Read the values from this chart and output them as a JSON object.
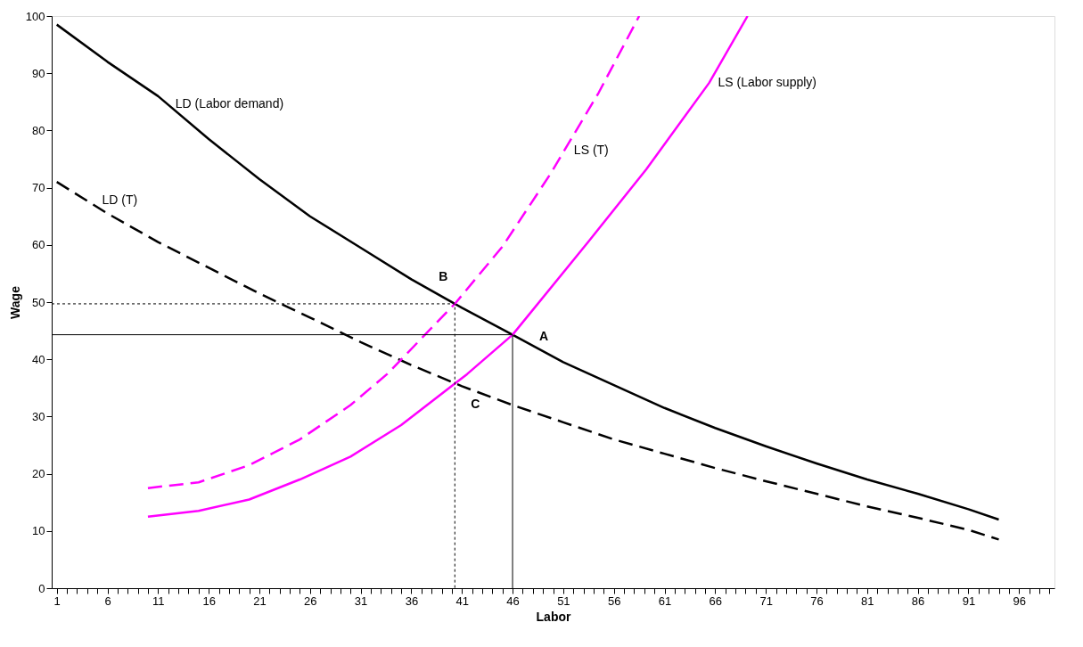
{
  "chart_data": {
    "type": "line",
    "xlabel": "Labor",
    "ylabel": "Wage",
    "xlim": [
      0.5,
      99.5
    ],
    "ylim": [
      0,
      100
    ],
    "xticks": [
      1,
      {
        "value": 2,
        "label": null
      },
      {
        "value": 3,
        "label": null
      },
      {
        "value": 4,
        "label": null
      },
      {
        "value": 5,
        "label": null
      },
      6,
      {
        "value": 7,
        "label": null
      },
      {
        "value": 8,
        "label": null
      },
      {
        "value": 9,
        "label": null
      },
      {
        "value": 10,
        "label": null
      },
      11,
      {
        "value": 12,
        "label": null
      },
      {
        "value": 13,
        "label": null
      },
      {
        "value": 14,
        "label": null
      },
      {
        "value": 15,
        "label": null
      },
      16,
      {
        "value": 17,
        "label": null
      },
      {
        "value": 18,
        "label": null
      },
      {
        "value": 19,
        "label": null
      },
      {
        "value": 20,
        "label": null
      },
      21,
      {
        "value": 22,
        "label": null
      },
      {
        "value": 23,
        "label": null
      },
      {
        "value": 24,
        "label": null
      },
      {
        "value": 25,
        "label": null
      },
      26,
      {
        "value": 27,
        "label": null
      },
      {
        "value": 28,
        "label": null
      },
      {
        "value": 29,
        "label": null
      },
      {
        "value": 30,
        "label": null
      },
      31,
      {
        "value": 32,
        "label": null
      },
      {
        "value": 33,
        "label": null
      },
      {
        "value": 34,
        "label": null
      },
      {
        "value": 35,
        "label": null
      },
      36,
      {
        "value": 37,
        "label": null
      },
      {
        "value": 38,
        "label": null
      },
      {
        "value": 39,
        "label": null
      },
      {
        "value": 40,
        "label": null
      },
      41,
      {
        "value": 42,
        "label": null
      },
      {
        "value": 43,
        "label": null
      },
      {
        "value": 44,
        "label": null
      },
      {
        "value": 45,
        "label": null
      },
      46,
      {
        "value": 47,
        "label": null
      },
      {
        "value": 48,
        "label": null
      },
      {
        "value": 49,
        "label": null
      },
      {
        "value": 50,
        "label": null
      },
      51,
      {
        "value": 52,
        "label": null
      },
      {
        "value": 53,
        "label": null
      },
      {
        "value": 54,
        "label": null
      },
      {
        "value": 55,
        "label": null
      },
      56,
      {
        "value": 57,
        "label": null
      },
      {
        "value": 58,
        "label": null
      },
      {
        "value": 59,
        "label": null
      },
      {
        "value": 60,
        "label": null
      },
      61,
      {
        "value": 62,
        "label": null
      },
      {
        "value": 63,
        "label": null
      },
      {
        "value": 64,
        "label": null
      },
      {
        "value": 65,
        "label": null
      },
      66,
      {
        "value": 67,
        "label": null
      },
      {
        "value": 68,
        "label": null
      },
      {
        "value": 69,
        "label": null
      },
      {
        "value": 70,
        "label": null
      },
      71,
      {
        "value": 72,
        "label": null
      },
      {
        "value": 73,
        "label": null
      },
      {
        "value": 74,
        "label": null
      },
      {
        "value": 75,
        "label": null
      },
      76,
      {
        "value": 77,
        "label": null
      },
      {
        "value": 78,
        "label": null
      },
      {
        "value": 79,
        "label": null
      },
      {
        "value": 80,
        "label": null
      },
      81,
      {
        "value": 82,
        "label": null
      },
      {
        "value": 83,
        "label": null
      },
      {
        "value": 84,
        "label": null
      },
      {
        "value": 85,
        "label": null
      },
      86,
      {
        "value": 87,
        "label": null
      },
      {
        "value": 88,
        "label": null
      },
      {
        "value": 89,
        "label": null
      },
      {
        "value": 90,
        "label": null
      },
      91,
      {
        "value": 92,
        "label": null
      },
      {
        "value": 93,
        "label": null
      },
      {
        "value": 94,
        "label": null
      },
      {
        "value": 95,
        "label": null
      },
      96,
      {
        "value": 97,
        "label": null
      },
      {
        "value": 98,
        "label": null
      },
      {
        "value": 99,
        "label": null
      }
    ],
    "yticks": [
      0,
      10,
      20,
      30,
      40,
      50,
      60,
      70,
      80,
      90,
      100
    ],
    "grid": false,
    "series": [
      {
        "color": "#000000",
        "line_style": "solid",
        "x": [
          1,
          6,
          11,
          16,
          21,
          26,
          31,
          36,
          41,
          46,
          51,
          56,
          61,
          66,
          71,
          76,
          81,
          86,
          91,
          94
        ],
        "values": [
          98.5,
          92,
          86,
          78.5,
          71.5,
          65,
          59.5,
          54,
          49,
          44.3,
          39.5,
          35.5,
          31.5,
          28,
          24.8,
          21.8,
          19,
          16.5,
          13.8,
          12
        ]
      },
      {
        "color": "#000000",
        "line_style": "dashed",
        "x": [
          1,
          6,
          11,
          16,
          21,
          26,
          31,
          36,
          41,
          46,
          51,
          56,
          61,
          66,
          71,
          76,
          81,
          86,
          91,
          94
        ],
        "values": [
          71,
          65.5,
          60.5,
          56,
          51.5,
          47.3,
          43,
          39,
          35.3,
          32,
          29,
          26,
          23.5,
          21,
          18.7,
          16.5,
          14.3,
          12.3,
          10.2,
          8.5
        ]
      },
      {
        "color": "#ff00ff",
        "line_style": "solid",
        "x": [
          10,
          15,
          20,
          25,
          30,
          35,
          41.5,
          46,
          53.5,
          59.2,
          65.4,
          69.2
        ],
        "values": [
          12.5,
          13.5,
          15.5,
          19,
          23,
          28.5,
          37.4,
          44.3,
          60.6,
          73.2,
          88.3,
          100
        ]
      },
      {
        "color": "#ff00ff",
        "line_style": "dashed",
        "x": [
          10,
          15,
          20,
          25,
          30,
          33.6,
          40.3,
          45,
          49.7,
          54.5,
          58.5
        ],
        "values": [
          17.5,
          18.5,
          21.5,
          26,
          32,
          37.4,
          49.7,
          59.7,
          72.3,
          86.6,
          100
        ]
      },
      {
        "color": "#000000",
        "line_style": "solid",
        "x": [
          0.5,
          46,
          46
        ],
        "values": [
          44.3,
          44.3,
          0
        ]
      },
      {
        "color": "#000000",
        "line_style": "dotted",
        "x": [
          0.5,
          40.3,
          40.3
        ],
        "values": [
          49.7,
          49.7,
          0
        ]
      }
    ],
    "annotations": [
      {
        "text": "LD (Labor demand)",
        "x": 12,
        "y": 84.6
      },
      {
        "text": "LD (T)",
        "x": 6,
        "y": 65.5
      },
      {
        "text": "LS (T)",
        "x": 51,
        "y": 76.5
      },
      {
        "text": "LS (Labor supply)",
        "x": 65.4,
        "y": 88.3
      },
      {
        "text": "B",
        "x": 40.3,
        "y": 49.7
      },
      {
        "text": "A",
        "x": 46,
        "y": 44.3
      },
      {
        "text": "C",
        "x": 40.3,
        "y": 35.8
      }
    ]
  }
}
